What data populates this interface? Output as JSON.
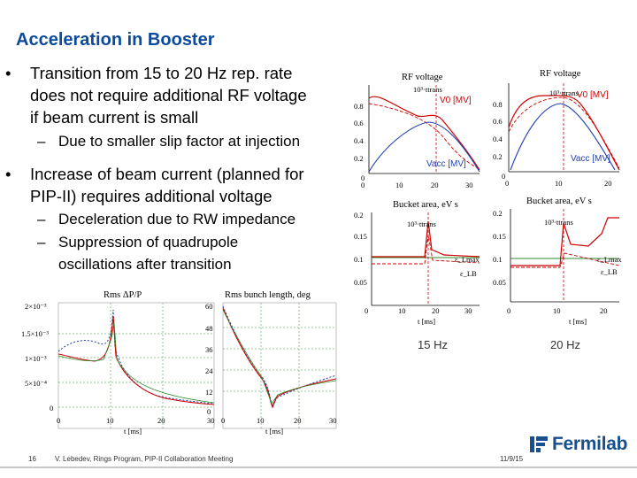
{
  "slide": {
    "title": "Acceleration in Booster",
    "bullets": [
      {
        "text_lines": [
          "Transition from 15 to 20 Hz rep. rate",
          "does not require additional RF voltage",
          "if beam current is small"
        ],
        "subs": [
          [
            "Due to smaller slip factor at injection"
          ]
        ]
      },
      {
        "text_lines": [
          "Increase of beam current (planned for",
          "PIP-II) requires additional voltage"
        ],
        "subs": [
          [
            "Deceleration due to RW impedance"
          ],
          [
            "Suppression of quadrupole",
            "oscillations after transition"
          ]
        ]
      }
    ],
    "bullet_glyph": "•",
    "dash_glyph": "–"
  },
  "plots": {
    "rf15": {
      "title": "RF voltage",
      "yticks": [
        "0.8",
        "0.6",
        "0.4",
        "0.2",
        "0"
      ],
      "xticks": [
        "0",
        "10",
        "20",
        "30"
      ],
      "v0_label": "V0 [MV]",
      "vacc_label": "Vacc [MV]",
      "ttrans": "10³·ttrans"
    },
    "rf20": {
      "title": "RF voltage",
      "yticks": [
        "0.8",
        "0.6",
        "0.4",
        "0.2",
        "0"
      ],
      "xticks": [
        "0",
        "10",
        "20"
      ],
      "v0_label": "V0 [MV]",
      "vacc_label": "Vacc [MV]",
      "ttrans": "10³·ttrans"
    },
    "ba15": {
      "title": "Bucket area, eV s",
      "yticks": [
        "0.2",
        "0.15",
        "0.1",
        "0.05"
      ],
      "xticks": [
        "0",
        "10",
        "20",
        "30"
      ],
      "xlabel": "t [ms]",
      "ttrans": "10³·ttrans",
      "lab1": "ε_Lmax",
      "lab2": "ε_LB"
    },
    "ba20": {
      "title": "Bucket area, eV s",
      "yticks": [
        "0.2",
        "0.15",
        "0.1",
        "0.05"
      ],
      "xticks": [
        "0",
        "10",
        "20"
      ],
      "xlabel": "t [ms]",
      "ttrans": "10³·ttrans",
      "lab1": "ε_Lmax",
      "lab2": "ε_LB"
    },
    "dpp": {
      "title": "Rms ΔP/P",
      "yticks": [
        "2×10⁻³",
        "1.5×10⁻³",
        "1×10⁻³",
        "5×10⁻⁴",
        "0"
      ],
      "xticks": [
        "0",
        "10",
        "20",
        "30"
      ],
      "xlabel": "t [ms]"
    },
    "bl": {
      "title": "Rms bunch length, deg",
      "yticks": [
        "60",
        "48",
        "36",
        "24",
        "12",
        "0"
      ],
      "xticks": [
        "0",
        "10",
        "20",
        "30"
      ],
      "xlabel": "t [ms]"
    }
  },
  "labels": {
    "hz15": "15 Hz",
    "hz20": "20 Hz"
  },
  "footer": {
    "page": "16",
    "citation": "V. Lebedev, Rings Program,  PIP-II Collaboration Meeting",
    "date": "11/9/15"
  },
  "logo": {
    "word": "Fermilab"
  },
  "colors": {
    "title": "#0b4a9c",
    "red_curve": "#cc0000",
    "blue_curve": "#1f3fb0",
    "green_grid": "#2e8b2e"
  }
}
